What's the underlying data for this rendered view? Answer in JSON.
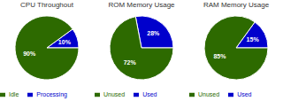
{
  "chart_data": [
    {
      "type": "pie",
      "title": "CPU Throughout",
      "categories": [
        "Processing",
        "Idle"
      ],
      "values": [
        10,
        90
      ],
      "value_labels": [
        "10%",
        "90%"
      ],
      "colors": [
        "#0000cc",
        "#2d6a00"
      ],
      "data_labels": true,
      "legend": "lower left"
    },
    {
      "type": "pie",
      "title": "ROM Memory Usage",
      "categories": [
        "Used",
        "Unused"
      ],
      "values": [
        28,
        72
      ],
      "value_labels": [
        "28%",
        "72%"
      ],
      "colors": [
        "#0000cc",
        "#2d6a00"
      ],
      "data_labels": true,
      "legend": "lower left"
    },
    {
      "type": "pie",
      "title": "RAM Memory Usage",
      "categories": [
        "Used",
        "Unused"
      ],
      "values": [
        15,
        85
      ],
      "value_labels": [
        "15%",
        "85%"
      ],
      "colors": [
        "#0000cc",
        "#2d6a00"
      ],
      "data_labels": true,
      "legend": "lower left"
    }
  ]
}
